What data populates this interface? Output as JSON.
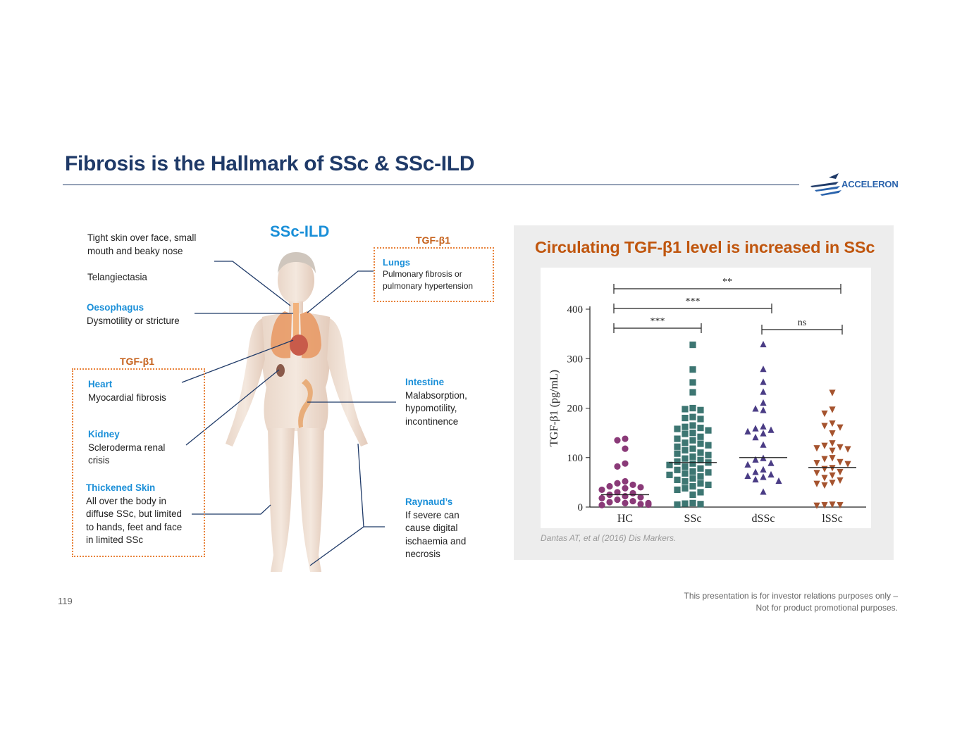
{
  "slide": {
    "title": "Fibrosis is the Hallmark of SSc & SSc-ILD",
    "logo_text": "ACCELERON",
    "page_number": "119",
    "disclaimer_line1": "This presentation is for investor relations purposes only –",
    "disclaimer_line2": "Not for product promotional purposes."
  },
  "diagram": {
    "heading": "SSc-ILD",
    "tgf_label_lungs": "TGF-β1",
    "tgf_label_left": "TGF-β1",
    "skin_face_line1": "Tight skin over face, small",
    "skin_face_line2": "mouth and beaky nose",
    "telangiectasia": "Telangiectasia",
    "oesophagus_title": "Oesophagus",
    "oesophagus_desc": "Dysmotility or stricture",
    "heart_title": "Heart",
    "heart_desc": "Myocardial fibrosis",
    "kidney_title": "Kidney",
    "kidney_desc_line1": "Scleroderma renal",
    "kidney_desc_line2": "crisis",
    "skin_title": "Thickened Skin",
    "skin_desc_line1": "All over the body in",
    "skin_desc_line2": "diffuse SSc, but limited",
    "skin_desc_line3": "to hands, feet and face",
    "skin_desc_line4": "in limited SSc",
    "lungs_title": "Lungs",
    "lungs_desc_line1": "Pulmonary fibrosis or",
    "lungs_desc_line2": "pulmonary hypertension",
    "intestine_title": "Intestine",
    "intestine_desc_line1": "Malabsorption,",
    "intestine_desc_line2": "hypomotility,",
    "intestine_desc_line3": "incontinence",
    "raynaud_title": "Raynaud’s",
    "raynaud_desc_line1": "If severe can",
    "raynaud_desc_line2": "cause digital",
    "raynaud_desc_line3": "ischaemia and",
    "raynaud_desc_line4": "necrosis"
  },
  "panel": {
    "title": "Circulating TGF-β1 level is increased in SSc",
    "citation": "Dantas AT, et al (2016) Dis Markers."
  },
  "chart_data": {
    "type": "scatter",
    "ylabel": "TGF-β1 (pg/mL)",
    "xlabel": "",
    "ylim": [
      0,
      400
    ],
    "yticks": [
      0,
      100,
      200,
      300,
      400
    ],
    "categories": [
      "HC",
      "SSc",
      "dSSc",
      "lSSc"
    ],
    "series": [
      {
        "category": "HC",
        "marker": "circle",
        "color": "#8a3a78",
        "median": 25,
        "values": [
          138,
          135,
          118,
          88,
          82,
          52,
          48,
          45,
          42,
          40,
          38,
          35,
          30,
          28,
          25,
          22,
          20,
          18,
          15,
          12,
          10,
          8,
          8,
          6,
          5,
          4
        ]
      },
      {
        "category": "SSc",
        "marker": "square",
        "color": "#3d7672",
        "median": 90,
        "values": [
          328,
          278,
          252,
          232,
          200,
          198,
          196,
          182,
          180,
          178,
          165,
          162,
          160,
          158,
          155,
          150,
          148,
          142,
          138,
          135,
          130,
          128,
          125,
          122,
          118,
          115,
          110,
          108,
          105,
          102,
          98,
          95,
          92,
          90,
          88,
          85,
          82,
          78,
          75,
          72,
          70,
          68,
          65,
          62,
          58,
          55,
          52,
          48,
          45,
          42,
          38,
          35,
          30,
          25,
          8,
          7,
          6,
          5
        ]
      },
      {
        "category": "dSSc",
        "marker": "triangle-up",
        "color": "#4a3c85",
        "median": 100,
        "values": [
          328,
          278,
          252,
          232,
          210,
          198,
          195,
          162,
          158,
          155,
          152,
          148,
          140,
          125,
          98,
          95,
          88,
          85,
          75,
          70,
          65,
          62,
          60,
          55,
          52,
          30
        ]
      },
      {
        "category": "lSSc",
        "marker": "triangle-down",
        "color": "#a5532e",
        "median": 80,
        "values": [
          232,
          198,
          190,
          170,
          165,
          162,
          150,
          130,
          125,
          122,
          120,
          118,
          115,
          100,
          98,
          92,
          90,
          88,
          80,
          78,
          72,
          70,
          65,
          60,
          55,
          50,
          48,
          45,
          6,
          5,
          5,
          4
        ]
      }
    ],
    "significance": [
      {
        "from": "HC",
        "to": "lSSc",
        "label": "**"
      },
      {
        "from": "HC",
        "to": "dSSc",
        "label": "***"
      },
      {
        "from": "HC",
        "to": "SSc",
        "label": "***"
      },
      {
        "from": "dSSc",
        "to": "lSSc",
        "label": "ns"
      }
    ]
  }
}
